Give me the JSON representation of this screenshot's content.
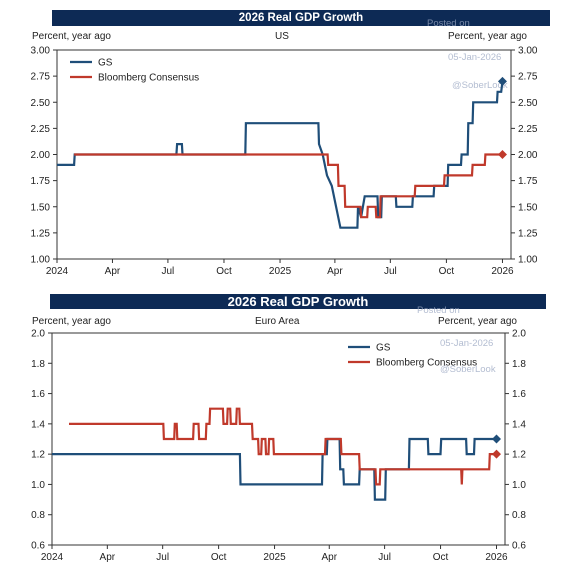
{
  "panels": [
    {
      "banner": "2026 Real GDP Growth",
      "left_unit": "Percent, year ago",
      "right_unit": "Percent, year ago",
      "region": "US",
      "watermark": [
        "Posted on",
        "05-Jan-2026",
        "@SoberLook"
      ]
    },
    {
      "banner": "2026 Real GDP Growth",
      "left_unit": "Percent, year ago",
      "right_unit": "Percent, year ago",
      "region": "Euro Area",
      "watermark": [
        "Posted on",
        "05-Jan-2026",
        "@SoberLook"
      ]
    }
  ],
  "colors": {
    "gs": "#1f4e79",
    "consensus": "#c0392b",
    "banner": "#0d2a55"
  },
  "chart_data": [
    {
      "type": "line",
      "title": "2026 Real GDP Growth",
      "subtitle": "US",
      "ylabel": "Percent, year ago",
      "ylim": [
        1.0,
        3.0
      ],
      "yticks": [
        "1.00",
        "1.25",
        "1.50",
        "1.75",
        "2.00",
        "2.25",
        "2.50",
        "2.75",
        "3.00"
      ],
      "xlim": [
        "2024-01-01",
        "2026-01-15"
      ],
      "xticks": [
        {
          "date": "2024-01-01",
          "label": "2024"
        },
        {
          "date": "2024-04-01",
          "label": "Apr"
        },
        {
          "date": "2024-07-01",
          "label": "Jul"
        },
        {
          "date": "2024-10-01",
          "label": "Oct"
        },
        {
          "date": "2025-01-01",
          "label": "2025"
        },
        {
          "date": "2025-04-01",
          "label": "Apr"
        },
        {
          "date": "2025-07-01",
          "label": "Jul"
        },
        {
          "date": "2025-10-01",
          "label": "Oct"
        },
        {
          "date": "2026-01-01",
          "label": "2026"
        }
      ],
      "legend_position": "top-left",
      "series": [
        {
          "name": "GS",
          "color": "#1f4e79",
          "points": [
            [
              "2024-01-01",
              1.9
            ],
            [
              "2024-01-29",
              1.9
            ],
            [
              "2024-01-30",
              2.0
            ],
            [
              "2024-07-15",
              2.0
            ],
            [
              "2024-07-16",
              2.1
            ],
            [
              "2024-07-24",
              2.1
            ],
            [
              "2024-07-25",
              2.0
            ],
            [
              "2024-11-05",
              2.0
            ],
            [
              "2024-11-06",
              2.3
            ],
            [
              "2025-03-05",
              2.3
            ],
            [
              "2025-03-06",
              2.1
            ],
            [
              "2025-03-12",
              2.0
            ],
            [
              "2025-03-19",
              1.8
            ],
            [
              "2025-03-27",
              1.7
            ],
            [
              "2025-04-03",
              1.5
            ],
            [
              "2025-04-10",
              1.3
            ],
            [
              "2025-05-08",
              1.3
            ],
            [
              "2025-05-09",
              1.5
            ],
            [
              "2025-05-14",
              1.4
            ],
            [
              "2025-05-20",
              1.6
            ],
            [
              "2025-06-10",
              1.6
            ],
            [
              "2025-06-11",
              1.4
            ],
            [
              "2025-06-16",
              1.4
            ],
            [
              "2025-06-17",
              1.6
            ],
            [
              "2025-07-10",
              1.6
            ],
            [
              "2025-07-11",
              1.5
            ],
            [
              "2025-08-06",
              1.5
            ],
            [
              "2025-08-07",
              1.6
            ],
            [
              "2025-09-10",
              1.6
            ],
            [
              "2025-09-11",
              1.7
            ],
            [
              "2025-10-03",
              1.7
            ],
            [
              "2025-10-04",
              1.9
            ],
            [
              "2025-10-25",
              1.9
            ],
            [
              "2025-10-26",
              2.0
            ],
            [
              "2025-11-05",
              2.0
            ],
            [
              "2025-11-06",
              2.3
            ],
            [
              "2025-11-13",
              2.3
            ],
            [
              "2025-11-14",
              2.5
            ],
            [
              "2025-12-23",
              2.5
            ],
            [
              "2025-12-24",
              2.6
            ],
            [
              "2025-12-30",
              2.6
            ],
            [
              "2026-01-01",
              2.7
            ]
          ],
          "end_marker": [
            "2026-01-01",
            2.7
          ]
        },
        {
          "name": "Bloomberg Consensus",
          "color": "#c0392b",
          "points": [
            [
              "2024-01-29",
              2.0
            ],
            [
              "2025-03-20",
              2.0
            ],
            [
              "2025-03-21",
              1.9
            ],
            [
              "2025-04-06",
              1.9
            ],
            [
              "2025-04-07",
              1.7
            ],
            [
              "2025-04-17",
              1.7
            ],
            [
              "2025-04-18",
              1.5
            ],
            [
              "2025-05-13",
              1.5
            ],
            [
              "2025-05-14",
              1.4
            ],
            [
              "2025-05-24",
              1.4
            ],
            [
              "2025-05-25",
              1.5
            ],
            [
              "2025-06-07",
              1.5
            ],
            [
              "2025-06-08",
              1.4
            ],
            [
              "2025-06-14",
              1.4
            ],
            [
              "2025-06-15",
              1.6
            ],
            [
              "2025-08-10",
              1.6
            ],
            [
              "2025-08-11",
              1.7
            ],
            [
              "2025-09-27",
              1.7
            ],
            [
              "2025-09-28",
              1.8
            ],
            [
              "2025-11-12",
              1.8
            ],
            [
              "2025-11-13",
              1.9
            ],
            [
              "2025-12-03",
              1.9
            ],
            [
              "2025-12-04",
              2.0
            ],
            [
              "2026-01-01",
              2.0
            ]
          ],
          "end_marker": [
            "2026-01-01",
            2.0
          ]
        }
      ]
    },
    {
      "type": "line",
      "title": "2026 Real GDP Growth",
      "subtitle": "Euro Area",
      "ylabel": "Percent, year ago",
      "ylim": [
        0.6,
        2.0
      ],
      "yticks": [
        "0.6",
        "0.8",
        "1.0",
        "1.2",
        "1.4",
        "1.6",
        "1.8",
        "2.0"
      ],
      "xlim": [
        "2024-01-01",
        "2026-01-15"
      ],
      "xticks": [
        {
          "date": "2024-01-01",
          "label": "2024"
        },
        {
          "date": "2024-04-01",
          "label": "Apr"
        },
        {
          "date": "2024-07-01",
          "label": "Jul"
        },
        {
          "date": "2024-10-01",
          "label": "Oct"
        },
        {
          "date": "2025-01-01",
          "label": "2025"
        },
        {
          "date": "2025-04-01",
          "label": "Apr"
        },
        {
          "date": "2025-07-01",
          "label": "Jul"
        },
        {
          "date": "2025-10-01",
          "label": "Oct"
        },
        {
          "date": "2026-01-01",
          "label": "2026"
        }
      ],
      "legend_position": "top-right",
      "series": [
        {
          "name": "GS",
          "color": "#1f4e79",
          "points": [
            [
              "2024-01-01",
              1.2
            ],
            [
              "2024-11-05",
              1.2
            ],
            [
              "2024-11-06",
              1.0
            ],
            [
              "2025-03-20",
              1.0
            ],
            [
              "2025-03-21",
              1.2
            ],
            [
              "2025-03-28",
              1.2
            ],
            [
              "2025-03-29",
              1.3
            ],
            [
              "2025-04-18",
              1.3
            ],
            [
              "2025-04-19",
              1.1
            ],
            [
              "2025-04-24",
              1.1
            ],
            [
              "2025-04-25",
              1.0
            ],
            [
              "2025-05-20",
              1.0
            ],
            [
              "2025-05-21",
              1.1
            ],
            [
              "2025-06-14",
              1.1
            ],
            [
              "2025-06-15",
              0.9
            ],
            [
              "2025-07-02",
              0.9
            ],
            [
              "2025-07-03",
              1.1
            ],
            [
              "2025-08-10",
              1.1
            ],
            [
              "2025-08-11",
              1.3
            ],
            [
              "2025-09-10",
              1.3
            ],
            [
              "2025-09-11",
              1.2
            ],
            [
              "2025-10-01",
              1.2
            ],
            [
              "2025-10-02",
              1.3
            ],
            [
              "2025-11-12",
              1.3
            ],
            [
              "2025-11-13",
              1.2
            ],
            [
              "2025-11-25",
              1.2
            ],
            [
              "2025-11-26",
              1.3
            ],
            [
              "2026-01-01",
              1.3
            ]
          ],
          "end_marker": [
            "2026-01-01",
            1.3
          ]
        },
        {
          "name": "Bloomberg Consensus",
          "color": "#c0392b",
          "points": [
            [
              "2024-01-29",
              1.4
            ],
            [
              "2024-07-02",
              1.4
            ],
            [
              "2024-07-03",
              1.3
            ],
            [
              "2024-07-20",
              1.3
            ],
            [
              "2024-07-21",
              1.4
            ],
            [
              "2024-07-24",
              1.4
            ],
            [
              "2024-07-25",
              1.3
            ],
            [
              "2024-08-20",
              1.3
            ],
            [
              "2024-08-21",
              1.4
            ],
            [
              "2024-08-29",
              1.4
            ],
            [
              "2024-08-30",
              1.3
            ],
            [
              "2024-09-10",
              1.3
            ],
            [
              "2024-09-11",
              1.4
            ],
            [
              "2024-09-16",
              1.4
            ],
            [
              "2024-09-17",
              1.5
            ],
            [
              "2024-10-08",
              1.5
            ],
            [
              "2024-10-09",
              1.4
            ],
            [
              "2024-10-15",
              1.4
            ],
            [
              "2024-10-16",
              1.5
            ],
            [
              "2024-10-20",
              1.5
            ],
            [
              "2024-10-21",
              1.4
            ],
            [
              "2024-10-30",
              1.4
            ],
            [
              "2024-10-31",
              1.5
            ],
            [
              "2024-11-04",
              1.5
            ],
            [
              "2024-11-05",
              1.4
            ],
            [
              "2024-11-25",
              1.4
            ],
            [
              "2024-11-26",
              1.3
            ],
            [
              "2024-12-05",
              1.3
            ],
            [
              "2024-12-06",
              1.2
            ],
            [
              "2024-12-10",
              1.2
            ],
            [
              "2024-12-11",
              1.3
            ],
            [
              "2024-12-17",
              1.3
            ],
            [
              "2024-12-18",
              1.2
            ],
            [
              "2024-12-22",
              1.2
            ],
            [
              "2024-12-23",
              1.3
            ],
            [
              "2024-12-30",
              1.3
            ],
            [
              "2024-12-31",
              1.2
            ],
            [
              "2025-03-25",
              1.2
            ],
            [
              "2025-03-26",
              1.3
            ],
            [
              "2025-04-20",
              1.3
            ],
            [
              "2025-04-21",
              1.2
            ],
            [
              "2025-05-20",
              1.2
            ],
            [
              "2025-05-21",
              1.1
            ],
            [
              "2025-06-16",
              1.1
            ],
            [
              "2025-06-17",
              1.0
            ],
            [
              "2025-06-23",
              1.0
            ],
            [
              "2025-06-24",
              1.1
            ],
            [
              "2025-11-04",
              1.1
            ],
            [
              "2025-11-05",
              1.0
            ],
            [
              "2025-11-06",
              1.1
            ],
            [
              "2025-12-20",
              1.1
            ],
            [
              "2025-12-21",
              1.2
            ],
            [
              "2026-01-01",
              1.2
            ]
          ],
          "end_marker": [
            "2026-01-01",
            1.2
          ]
        }
      ]
    }
  ]
}
